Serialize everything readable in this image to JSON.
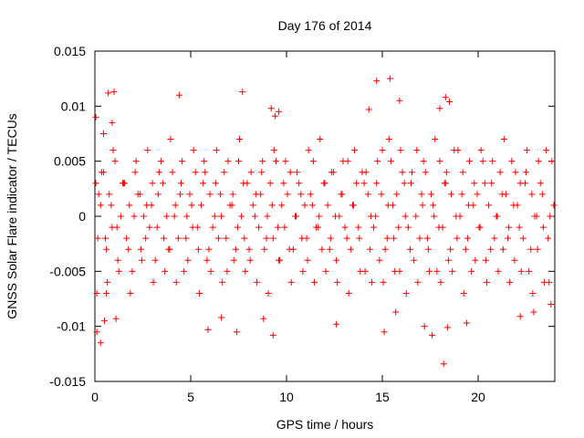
{
  "chart_data": {
    "type": "scatter",
    "title": "Day 176 of 2014",
    "xlabel": "GPS time / hours",
    "ylabel": "GNSS Solar Flare indicator / TECUs",
    "xlim": [
      0,
      24
    ],
    "ylim": [
      -0.015,
      0.015
    ],
    "x_ticks": [
      0,
      5,
      10,
      15,
      20
    ],
    "x_tick_labels": [
      "0",
      "5",
      "10",
      "15",
      "20"
    ],
    "y_ticks": [
      -0.015,
      -0.01,
      -0.005,
      0,
      0.005,
      0.01,
      0.015
    ],
    "y_tick_labels": [
      "-0.015",
      "-0.01",
      "-0.005",
      "0",
      "0.005",
      "0.01",
      "0.015"
    ],
    "grid": false,
    "marker": "plus",
    "color": "#ff0000",
    "series": [
      {
        "name": "solar flare indicator",
        "x": [
          0.05,
          0.15,
          0.3,
          0.45,
          0.6,
          0.75,
          0.9,
          1.05,
          1.2,
          1.35,
          1.5,
          1.65,
          1.8,
          1.95,
          2.1,
          2.25,
          2.4,
          2.55,
          2.7,
          2.85,
          3.0,
          3.15,
          3.3,
          3.45,
          3.6,
          3.75,
          3.9,
          4.05,
          4.2,
          4.35,
          4.5,
          4.65,
          4.8,
          4.95,
          5.1,
          5.25,
          5.4,
          5.55,
          5.7,
          5.85,
          6.0,
          6.15,
          6.3,
          6.45,
          6.6,
          6.75,
          6.9,
          7.05,
          7.2,
          7.35,
          7.5,
          7.65,
          7.8,
          7.95,
          8.1,
          8.25,
          8.4,
          8.55,
          8.7,
          8.85,
          9.0,
          9.15,
          9.3,
          9.45,
          9.6,
          9.75,
          9.9,
          10.05,
          10.2,
          10.35,
          10.5,
          10.65,
          10.8,
          10.95,
          11.1,
          11.25,
          11.4,
          11.55,
          11.7,
          11.85,
          12.0,
          12.15,
          12.3,
          12.45,
          12.6,
          12.75,
          12.9,
          13.05,
          13.2,
          13.35,
          13.5,
          13.65,
          13.8,
          13.95,
          14.1,
          14.25,
          14.4,
          14.55,
          14.7,
          14.85,
          15.0,
          15.15,
          15.3,
          15.45,
          15.6,
          15.75,
          15.9,
          16.05,
          16.2,
          16.35,
          16.5,
          16.65,
          16.8,
          16.95,
          17.1,
          17.25,
          17.4,
          17.55,
          17.7,
          17.85,
          18.0,
          18.15,
          18.3,
          18.45,
          18.6,
          18.75,
          18.9,
          19.05,
          19.2,
          19.35,
          19.5,
          19.65,
          19.8,
          19.95,
          20.1,
          20.25,
          20.4,
          20.55,
          20.7,
          20.85,
          21.0,
          21.15,
          21.3,
          21.45,
          21.6,
          21.75,
          21.9,
          22.05,
          22.2,
          22.35,
          22.5,
          22.65,
          22.8,
          22.95,
          23.1,
          23.25,
          23.4,
          23.55,
          23.7,
          23.85,
          0.1,
          0.35,
          0.65,
          0.95,
          1.25,
          1.55,
          1.85,
          2.15,
          2.45,
          2.75,
          3.05,
          3.35,
          3.65,
          3.95,
          4.25,
          4.55,
          4.85,
          5.15,
          5.45,
          5.75,
          6.05,
          6.35,
          6.65,
          6.95,
          7.25,
          7.55,
          7.85,
          8.15,
          8.45,
          8.75,
          9.05,
          9.35,
          9.65,
          9.95,
          10.25,
          10.55,
          10.85,
          11.15,
          11.45,
          11.75,
          12.05,
          12.35,
          12.65,
          12.95,
          13.25,
          13.55,
          13.85,
          14.15,
          14.45,
          14.75,
          15.05,
          15.35,
          15.65,
          15.95,
          16.25,
          16.55,
          16.85,
          17.15,
          17.45,
          17.75,
          18.05,
          18.35,
          18.65,
          18.95,
          19.25,
          19.55,
          19.85,
          20.15,
          20.45,
          20.75,
          21.05,
          21.35,
          21.65,
          21.95,
          22.25,
          22.55,
          22.85,
          23.15,
          23.45,
          23.75,
          0.2,
          0.55,
          0.85,
          1.15,
          1.45,
          1.75,
          2.05,
          2.35,
          2.65,
          2.95,
          3.25,
          3.55,
          3.85,
          4.15,
          4.45,
          4.75,
          5.05,
          5.35,
          5.65,
          5.95,
          6.25,
          6.55,
          6.85,
          7.15,
          7.45,
          7.75,
          8.05,
          8.35,
          8.65,
          8.95,
          9.25,
          9.55,
          9.85,
          10.15,
          10.45,
          10.75,
          11.05,
          11.35,
          11.65,
          11.95,
          12.25,
          12.55,
          12.85,
          13.15,
          13.45,
          13.75,
          14.05,
          14.35,
          14.65,
          14.95,
          15.25,
          15.55,
          15.85,
          16.15,
          16.45,
          16.75,
          17.05,
          17.35,
          17.65,
          17.95,
          18.25,
          18.55,
          18.85,
          19.15,
          19.45,
          19.75,
          20.05,
          20.35,
          20.65,
          20.95,
          21.25,
          21.55,
          21.85,
          22.15,
          22.45,
          22.75,
          23.05,
          23.35,
          23.65,
          23.95,
          0.05,
          0.1,
          0.45,
          0.6,
          0.7,
          0.9,
          1.0,
          4.4,
          7.7,
          9.2,
          9.4,
          9.6,
          14.3,
          14.7,
          15.4,
          15.9,
          18.0,
          18.3,
          18.5,
          0.3,
          0.5,
          1.1,
          5.9,
          6.6,
          7.4,
          8.8,
          9.3,
          12.6,
          15.1,
          15.7,
          17.2,
          17.6,
          18.2,
          18.4,
          19.4,
          22.2,
          22.9,
          23.8
        ],
        "y": [
          0.003,
          -0.002,
          0.001,
          0.004,
          -0.003,
          0.002,
          -0.001,
          0.005,
          -0.004,
          0.0,
          0.003,
          -0.002,
          0.001,
          -0.005,
          0.004,
          0.002,
          -0.003,
          0.0,
          0.001,
          -0.001,
          0.003,
          -0.004,
          0.002,
          0.005,
          -0.002,
          0.0,
          -0.003,
          0.004,
          0.001,
          -0.002,
          0.003,
          -0.005,
          0.0,
          0.002,
          -0.001,
          0.004,
          -0.003,
          0.001,
          0.005,
          -0.004,
          0.002,
          -0.001,
          0.003,
          -0.002,
          0.0,
          0.004,
          -0.005,
          0.001,
          0.002,
          -0.003,
          0.005,
          0.0,
          -0.002,
          0.003,
          -0.004,
          0.001,
          0.002,
          -0.001,
          0.004,
          -0.003,
          0.0,
          0.003,
          -0.002,
          0.005,
          -0.004,
          0.001,
          -0.001,
          0.002,
          0.004,
          -0.003,
          0.0,
          0.003,
          -0.002,
          0.001,
          -0.004,
          0.002,
          0.005,
          -0.001,
          0.0,
          -0.003,
          0.003,
          0.001,
          -0.002,
          0.004,
          -0.004,
          0.0,
          0.002,
          -0.001,
          0.005,
          -0.003,
          0.001,
          0.003,
          -0.002,
          0.004,
          -0.005,
          0.002,
          0.0,
          -0.001,
          0.003,
          -0.004,
          0.006,
          -0.003,
          0.001,
          0.005,
          -0.002,
          0.002,
          -0.005,
          0.004,
          0.0,
          -0.001,
          0.003,
          -0.004,
          0.006,
          -0.002,
          0.001,
          0.004,
          -0.003,
          0.002,
          0.0,
          -0.005,
          0.005,
          -0.001,
          0.003,
          -0.004,
          0.002,
          0.006,
          -0.002,
          0.0,
          0.004,
          -0.003,
          0.001,
          -0.005,
          0.003,
          0.002,
          -0.001,
          0.005,
          -0.004,
          0.001,
          0.003,
          -0.002,
          0.0,
          0.004,
          -0.003,
          0.002,
          -0.001,
          0.005,
          -0.004,
          0.001,
          0.003,
          -0.002,
          0.004,
          -0.005,
          0.002,
          0.0,
          -0.003,
          0.003,
          -0.001,
          0.006,
          -0.006,
          0.005,
          -0.007,
          0.004,
          -0.006,
          0.006,
          -0.005,
          0.003,
          -0.007,
          0.005,
          -0.004,
          0.006,
          -0.006,
          0.004,
          -0.005,
          0.007,
          -0.006,
          0.005,
          -0.004,
          0.006,
          -0.007,
          0.004,
          -0.005,
          0.006,
          -0.006,
          0.005,
          -0.004,
          0.007,
          -0.005,
          0.004,
          -0.006,
          0.005,
          -0.007,
          0.006,
          -0.004,
          0.005,
          -0.006,
          0.004,
          -0.005,
          0.006,
          -0.006,
          0.007,
          -0.005,
          0.004,
          -0.006,
          0.005,
          -0.007,
          0.006,
          -0.005,
          0.004,
          -0.006,
          0.005,
          -0.006,
          0.007,
          -0.005,
          0.006,
          -0.007,
          0.004,
          -0.006,
          0.005,
          -0.005,
          0.007,
          -0.006,
          0.004,
          -0.005,
          0.006,
          -0.007,
          0.005,
          -0.004,
          0.006,
          -0.006,
          0.005,
          -0.005,
          0.007,
          -0.006,
          0.004,
          -0.005,
          0.006,
          -0.007,
          0.005,
          -0.006,
          0.0,
          0.002,
          -0.002,
          0.001,
          -0.001,
          0.003,
          -0.003,
          0.0,
          0.002,
          -0.002,
          0.001,
          -0.001,
          0.003,
          -0.003,
          0.0,
          0.002,
          -0.002,
          0.001,
          -0.001,
          0.003,
          -0.003,
          0.0,
          0.002,
          -0.002,
          0.001,
          -0.001,
          0.003,
          -0.003,
          0.0,
          0.002,
          -0.002,
          0.001,
          -0.001,
          0.003,
          -0.003,
          0.0,
          0.002,
          -0.002,
          0.001,
          -0.001,
          0.003,
          -0.003,
          0.0,
          0.002,
          -0.002,
          0.001,
          -0.001,
          0.003,
          -0.003,
          0.0,
          0.002,
          -0.002,
          0.001,
          -0.001,
          0.003,
          -0.003,
          0.0,
          0.002,
          -0.002,
          0.001,
          -0.001,
          0.003,
          -0.003,
          0.0,
          0.002,
          -0.002,
          0.001,
          -0.001,
          0.003,
          -0.003,
          0.0,
          0.002,
          -0.002,
          0.001,
          -0.001,
          0.003,
          -0.003,
          0.0,
          0.002,
          -0.002,
          0.001,
          0.009,
          -0.0105,
          0.0075,
          -0.007,
          0.0112,
          0.0085,
          0.0113,
          0.011,
          0.0113,
          0.0098,
          0.0091,
          0.0095,
          0.0097,
          0.0123,
          0.0125,
          0.0105,
          0.0098,
          0.0108,
          0.0104,
          -0.0115,
          -0.0095,
          -0.0093,
          -0.0103,
          -0.0092,
          -0.0105,
          -0.0093,
          -0.0108,
          -0.0098,
          -0.0105,
          -0.0087,
          -0.01,
          -0.0108,
          -0.0134,
          -0.0101,
          -0.0097,
          -0.0091,
          -0.0087,
          -0.008
        ]
      }
    ]
  }
}
